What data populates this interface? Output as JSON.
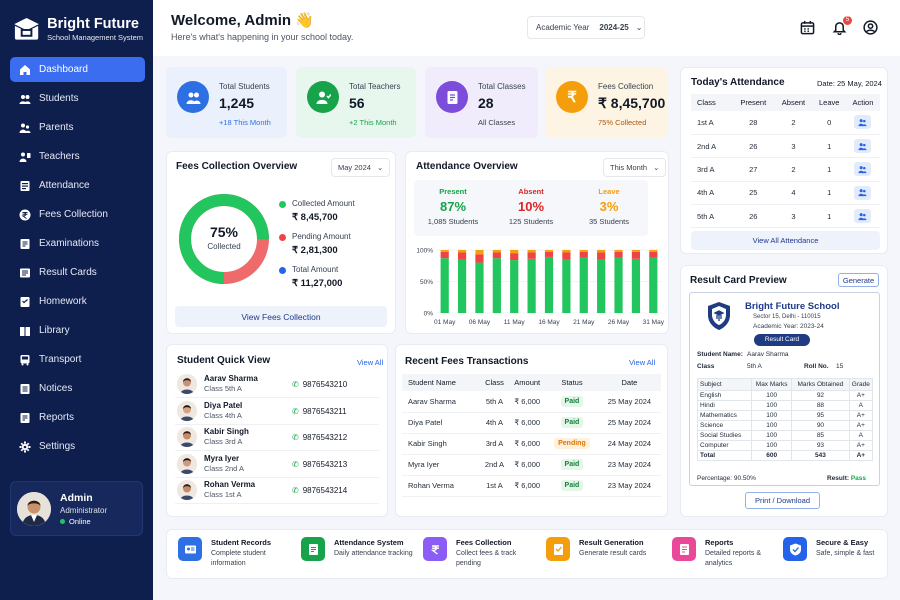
{
  "sidebar": {
    "brand_title": "Bright Future",
    "brand_subtitle": "School Management System",
    "items": [
      {
        "label": "Dashboard",
        "icon": "home-icon"
      },
      {
        "label": "Students",
        "icon": "students-icon"
      },
      {
        "label": "Parents",
        "icon": "parents-icon"
      },
      {
        "label": "Teachers",
        "icon": "teachers-icon"
      },
      {
        "label": "Attendance",
        "icon": "attendance-icon"
      },
      {
        "label": "Fees Collection",
        "icon": "rupee-icon"
      },
      {
        "label": "Examinations",
        "icon": "exam-icon"
      },
      {
        "label": "Result Cards",
        "icon": "result-card-icon"
      },
      {
        "label": "Homework",
        "icon": "homework-icon"
      },
      {
        "label": "Library",
        "icon": "library-icon"
      },
      {
        "label": "Transport",
        "icon": "bus-icon"
      },
      {
        "label": "Notices",
        "icon": "notices-icon"
      },
      {
        "label": "Reports",
        "icon": "reports-icon"
      },
      {
        "label": "Settings",
        "icon": "gear-icon"
      }
    ],
    "profile": {
      "name": "Admin",
      "role": "Administrator",
      "status": "Online"
    }
  },
  "header": {
    "welcome": "Welcome, Admin 👋",
    "subtitle": "Here's what's happening in your school today.",
    "year_label": "Academic Year",
    "year_value": "2024-25",
    "notification_count": "5"
  },
  "stats": [
    {
      "title": "Total Students",
      "value": "1,245",
      "sub": "+18 This Month",
      "color": "#2f6fe4",
      "bg": "#eaf1fd"
    },
    {
      "title": "Total Teachers",
      "value": "56",
      "sub": "+2 This Month",
      "color": "#16a34a",
      "bg": "#e8f7ee"
    },
    {
      "title": "Total Classes",
      "value": "28",
      "sub": "All Classes",
      "color": "#7c4ddb",
      "bg": "#f1ecfc"
    },
    {
      "title": "Fees Collection",
      "value": "₹ 8,45,700",
      "sub": "75% Collected",
      "color": "#f59e0b",
      "bg": "#fdf4e4"
    }
  ],
  "fees_overview": {
    "title": "Fees Collection Overview",
    "month": "May 2024",
    "percent": "75%",
    "percent_label": "Collected",
    "collected_fraction": 0.75,
    "legend": [
      {
        "label": "Collected Amount",
        "value": "₹ 8,45,700",
        "color": "#22c55e"
      },
      {
        "label": "Pending Amount",
        "value": "₹ 2,81,300",
        "color": "#ef4444"
      },
      {
        "label": "Total Amount",
        "value": "₹ 11,27,000",
        "color": "#2563eb"
      }
    ],
    "button": "View Fees Collection"
  },
  "attendance_overview": {
    "title": "Attendance Overview",
    "period": "This Month",
    "present": {
      "label": "Present",
      "value": "87%",
      "sub": "1,085 Students"
    },
    "absent": {
      "label": "Absent",
      "value": "10%",
      "sub": "125 Students"
    },
    "leave": {
      "label": "Leave",
      "value": "3%",
      "sub": "35 Students"
    }
  },
  "chart_data": {
    "type": "bar",
    "stacked": true,
    "categories": [
      "01 May",
      "",
      "06 May",
      "",
      "11 May",
      "",
      "16 May",
      "",
      "21 May",
      "",
      "26 May",
      "",
      "31 May"
    ],
    "tick_labels": [
      "01 May",
      "06 May",
      "11 May",
      "16 May",
      "21 May",
      "26 May",
      "31 May"
    ],
    "y_ticks": [
      "0%",
      "50%",
      "100%"
    ],
    "ylim": [
      0,
      100
    ],
    "series": [
      {
        "name": "Present",
        "color": "#22c55e",
        "values": [
          87,
          85,
          80,
          87,
          84,
          86,
          89,
          85,
          88,
          85,
          88,
          86,
          88
        ]
      },
      {
        "name": "Absent",
        "color": "#ef4444",
        "values": [
          10,
          11,
          13,
          9,
          11,
          10,
          8,
          11,
          9,
          11,
          9,
          11,
          9
        ]
      },
      {
        "name": "Leave",
        "color": "#f59e0b",
        "values": [
          3,
          4,
          7,
          4,
          5,
          4,
          3,
          4,
          3,
          4,
          3,
          3,
          3
        ]
      }
    ]
  },
  "todays_attendance": {
    "title": "Today's Attendance",
    "date": "Date: 25 May, 2024",
    "columns": [
      "Class",
      "Present",
      "Absent",
      "Leave",
      "Action"
    ],
    "rows": [
      [
        "1st A",
        "28",
        "2",
        "0"
      ],
      [
        "2nd A",
        "26",
        "3",
        "1"
      ],
      [
        "3rd A",
        "27",
        "2",
        "1"
      ],
      [
        "4th A",
        "25",
        "4",
        "1"
      ],
      [
        "5th A",
        "26",
        "3",
        "1"
      ]
    ],
    "link": "View All Attendance"
  },
  "student_quick_view": {
    "title": "Student Quick View",
    "view_all": "View All",
    "students": [
      {
        "name": "Aarav Sharma",
        "class": "Class 5th A",
        "phone": "9876543210"
      },
      {
        "name": "Diya Patel",
        "class": "Class 4th A",
        "phone": "9876543211"
      },
      {
        "name": "Kabir Singh",
        "class": "Class 3rd A",
        "phone": "9876543212"
      },
      {
        "name": "Myra Iyer",
        "class": "Class 2nd A",
        "phone": "9876543213"
      },
      {
        "name": "Rohan Verma",
        "class": "Class 1st A",
        "phone": "9876543214"
      }
    ]
  },
  "recent_fees": {
    "title": "Recent Fees Transactions",
    "view_all": "View All",
    "columns": [
      "Student Name",
      "Class",
      "Amount",
      "Status",
      "Date"
    ],
    "rows": [
      [
        "Aarav Sharma",
        "5th A",
        "₹ 6,000",
        "Paid",
        "25 May 2024"
      ],
      [
        "Diya Patel",
        "4th A",
        "₹ 6,000",
        "Paid",
        "25 May 2024"
      ],
      [
        "Kabir Singh",
        "3rd A",
        "₹ 6,000",
        "Pending",
        "24 May 2024"
      ],
      [
        "Myra Iyer",
        "2nd A",
        "₹ 6,000",
        "Paid",
        "23 May 2024"
      ],
      [
        "Rohan Verma",
        "1st A",
        "₹ 6,000",
        "Paid",
        "23 May 2024"
      ]
    ]
  },
  "result_card": {
    "title": "Result Card Preview",
    "generate": "Generate",
    "school": "Bright Future School",
    "address": "Sector 15, Delhi - 110015",
    "year": "Academic Year: 2023-24",
    "badge": "Result Card",
    "student_label": "Student Name:",
    "student_value": "Aarav Sharma",
    "class_label": "Class",
    "class_value": "5th A",
    "roll_label": "Roll No.",
    "roll_value": "15",
    "columns": [
      "Subject",
      "Max Marks",
      "Marks Obtained",
      "Grade"
    ],
    "rows": [
      [
        "English",
        "100",
        "92",
        "A+"
      ],
      [
        "Hindi",
        "100",
        "88",
        "A"
      ],
      [
        "Mathematics",
        "100",
        "95",
        "A+"
      ],
      [
        "Science",
        "100",
        "90",
        "A+"
      ],
      [
        "Social Studies",
        "100",
        "85",
        "A"
      ],
      [
        "Computer",
        "100",
        "93",
        "A+"
      ]
    ],
    "total": [
      "Total",
      "600",
      "543",
      "A+"
    ],
    "percentage": "Percentage: 90.50%",
    "result_label": "Result:",
    "result_value": "Pass",
    "print_button": "Print / Download"
  },
  "features": [
    {
      "title": "Student Records",
      "desc": "Complete student information",
      "color": "#2f6fe4",
      "icon": "id-card-icon"
    },
    {
      "title": "Attendance System",
      "desc": "Daily attendance tracking",
      "color": "#16a34a",
      "icon": "checklist-icon"
    },
    {
      "title": "Fees Collection",
      "desc": "Collect fees & track pending",
      "color": "#8b5cf6",
      "icon": "rupee-icon"
    },
    {
      "title": "Result Generation",
      "desc": "Generate result cards",
      "color": "#f59e0b",
      "icon": "result-icon"
    },
    {
      "title": "Reports",
      "desc": "Detailed reports & analytics",
      "color": "#ec4899",
      "icon": "report-icon"
    },
    {
      "title": "Secure & Easy",
      "desc": "Safe, simple & fast",
      "color": "#2563eb",
      "icon": "shield-icon"
    }
  ]
}
